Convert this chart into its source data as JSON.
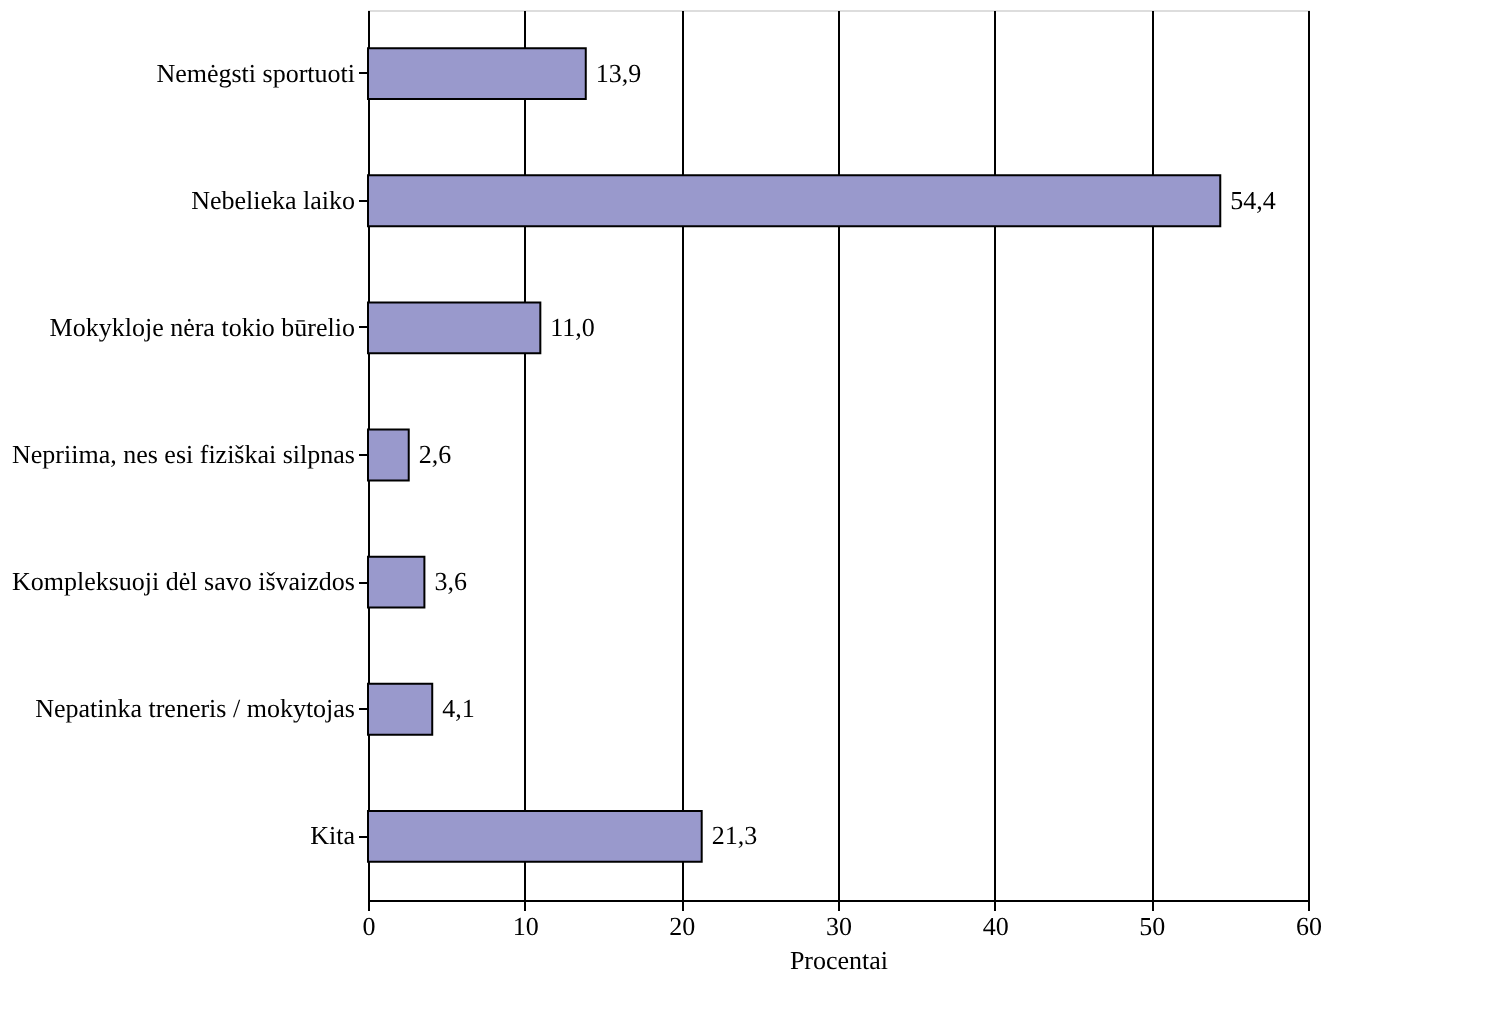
{
  "chart_data": {
    "type": "bar",
    "orientation": "horizontal",
    "xlabel": "Procentai",
    "categories": [
      "Nemėgsti sportuoti",
      "Nebelieka laiko",
      "Mokykloje nėra tokio būrelio",
      "Nepriima, nes esi fiziškai silpnas",
      "Kompleksuoji dėl savo išvaizdos",
      "Nepatinka treneris / mokytojas",
      "Kita"
    ],
    "values": [
      13.9,
      54.4,
      11.0,
      2.6,
      3.6,
      4.1,
      21.3
    ],
    "value_labels": [
      "13,9",
      "54,4",
      "11,0",
      "2,6",
      "3,6",
      "4,1",
      "21,3"
    ],
    "color": "#9999cc",
    "xlim": [
      0,
      60
    ],
    "xticks": [
      0,
      10,
      20,
      30,
      40,
      50,
      60
    ],
    "grid": "x"
  }
}
